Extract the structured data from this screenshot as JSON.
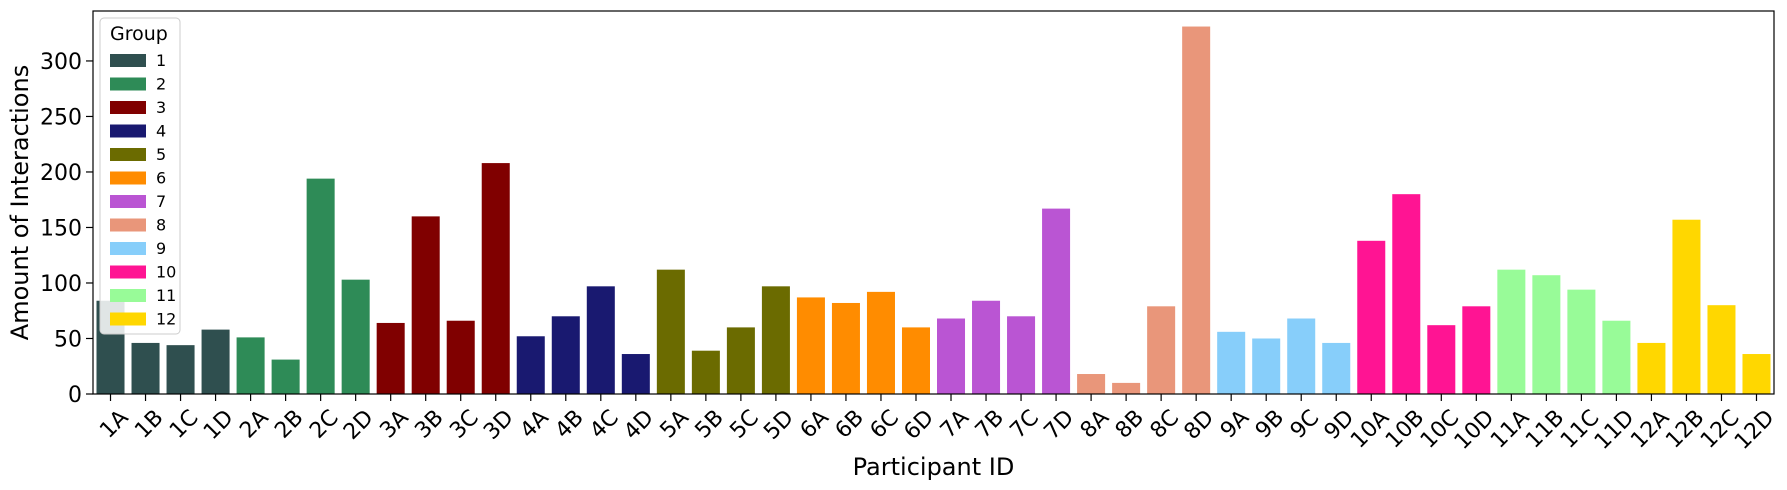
{
  "chart_data": {
    "type": "bar",
    "title": "",
    "xlabel": "Participant ID",
    "ylabel": "Amount of Interactions",
    "ylim": [
      0,
      345
    ],
    "yticks": [
      0,
      50,
      100,
      150,
      200,
      250,
      300
    ],
    "grid": false,
    "legend": {
      "title": "Group",
      "placement": "top-left",
      "entries": [
        {
          "label": "1",
          "color": "#2f4f4f"
        },
        {
          "label": "2",
          "color": "#2e8b57"
        },
        {
          "label": "3",
          "color": "#800000"
        },
        {
          "label": "4",
          "color": "#191970"
        },
        {
          "label": "5",
          "color": "#6b6b00"
        },
        {
          "label": "6",
          "color": "#ff8c00"
        },
        {
          "label": "7",
          "color": "#ba55d3"
        },
        {
          "label": "8",
          "color": "#e9967a"
        },
        {
          "label": "9",
          "color": "#87cefa"
        },
        {
          "label": "10",
          "color": "#ff1493"
        },
        {
          "label": "11",
          "color": "#98fb98"
        },
        {
          "label": "12",
          "color": "#ffd700"
        }
      ]
    },
    "categories": [
      "1A",
      "1B",
      "1C",
      "1D",
      "2A",
      "2B",
      "2C",
      "2D",
      "3A",
      "3B",
      "3C",
      "3D",
      "4A",
      "4B",
      "4C",
      "4D",
      "5A",
      "5B",
      "5C",
      "5D",
      "6A",
      "6B",
      "6C",
      "6D",
      "7A",
      "7B",
      "7C",
      "7D",
      "8A",
      "8B",
      "8C",
      "8D",
      "9A",
      "9B",
      "9C",
      "9D",
      "10A",
      "10B",
      "10C",
      "10D",
      "11A",
      "11B",
      "11C",
      "11D",
      "12A",
      "12B",
      "12C",
      "12D"
    ],
    "groups": [
      1,
      1,
      1,
      1,
      2,
      2,
      2,
      2,
      3,
      3,
      3,
      3,
      4,
      4,
      4,
      4,
      5,
      5,
      5,
      5,
      6,
      6,
      6,
      6,
      7,
      7,
      7,
      7,
      8,
      8,
      8,
      8,
      9,
      9,
      9,
      9,
      10,
      10,
      10,
      10,
      11,
      11,
      11,
      11,
      12,
      12,
      12,
      12
    ],
    "values": [
      84,
      46,
      44,
      58,
      51,
      31,
      194,
      103,
      64,
      160,
      66,
      208,
      52,
      70,
      97,
      36,
      112,
      39,
      60,
      97,
      87,
      82,
      92,
      60,
      68,
      84,
      70,
      167,
      18,
      10,
      79,
      331,
      56,
      50,
      68,
      46,
      138,
      180,
      62,
      79,
      112,
      107,
      94,
      66,
      46,
      157,
      80,
      36
    ]
  }
}
